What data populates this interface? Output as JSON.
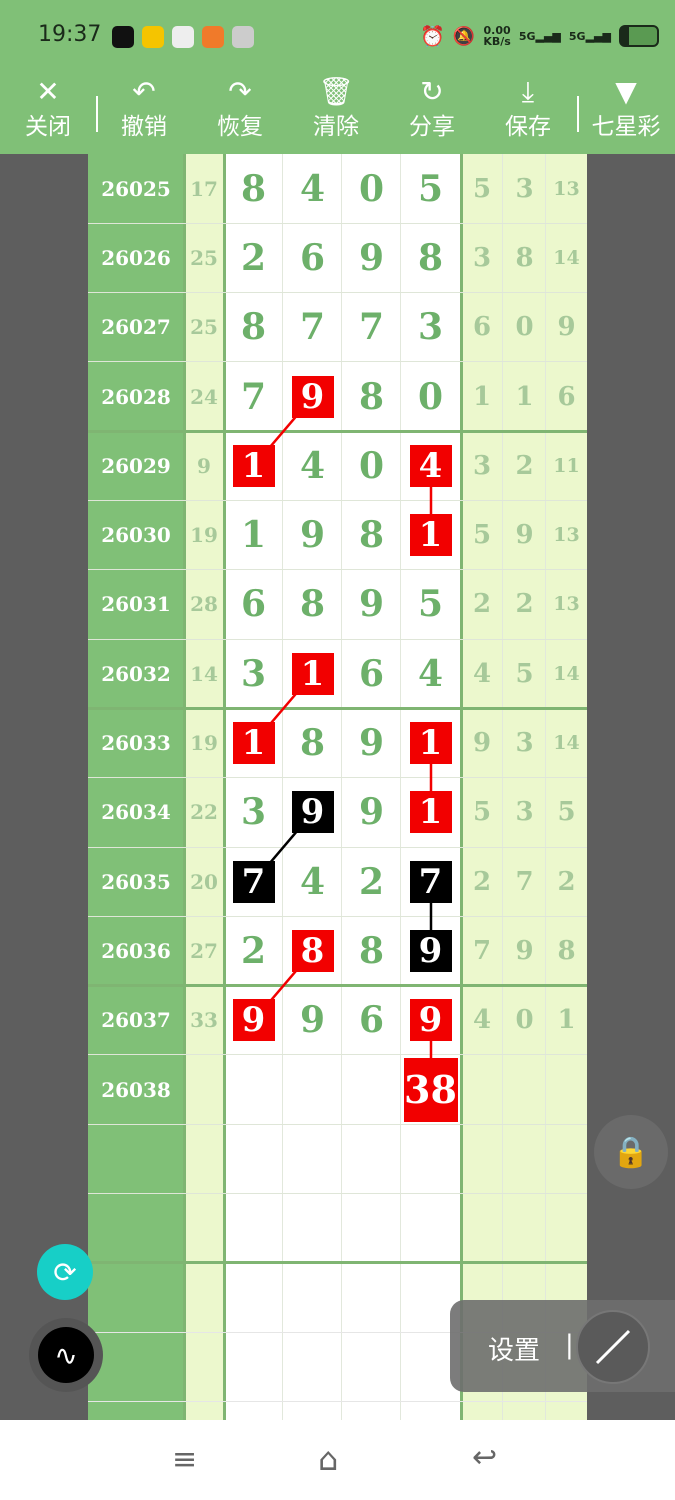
{
  "status": {
    "time": "19:37",
    "net_speed": "0.00",
    "net_unit": "KB/s",
    "sim1": "5G",
    "sim2": "5G",
    "battery_level": 0.25
  },
  "toolbar": [
    {
      "icon": "close-icon",
      "glyph": "✕",
      "label": "关闭"
    },
    {
      "icon": "undo-icon",
      "glyph": "↶",
      "label": "撤销"
    },
    {
      "icon": "redo-icon",
      "glyph": "↷",
      "label": "恢复"
    },
    {
      "icon": "trash-icon",
      "glyph": "🗑",
      "label": "清除"
    },
    {
      "icon": "share-icon",
      "glyph": "↻",
      "label": "分享"
    },
    {
      "icon": "download-icon",
      "glyph": "⤓",
      "label": "保存"
    },
    {
      "icon": "dropdown-triangle-icon",
      "glyph": "▼",
      "label": "七星彩"
    }
  ],
  "colors": {
    "green": "#80c077",
    "digit": "#6db06a",
    "light": "#ecf8cd",
    "red": "#f20000",
    "black": "#000000"
  },
  "rows": [
    {
      "id": "26025",
      "sum": "17",
      "d": [
        "8",
        "4",
        "0",
        "5"
      ],
      "r": [
        "5",
        "3",
        "13"
      ]
    },
    {
      "id": "26026",
      "sum": "25",
      "d": [
        "2",
        "6",
        "9",
        "8"
      ],
      "r": [
        "3",
        "8",
        "14"
      ]
    },
    {
      "id": "26027",
      "sum": "25",
      "d": [
        "8",
        "7",
        "7",
        "3"
      ],
      "r": [
        "6",
        "0",
        "9"
      ]
    },
    {
      "id": "26028",
      "sum": "24",
      "d": [
        "7",
        "9",
        "8",
        "0"
      ],
      "r": [
        "1",
        "1",
        "6"
      ]
    },
    {
      "id": "26029",
      "sum": "9",
      "d": [
        "1",
        "4",
        "0",
        "4"
      ],
      "r": [
        "3",
        "2",
        "11"
      ]
    },
    {
      "id": "26030",
      "sum": "19",
      "d": [
        "1",
        "9",
        "8",
        "1"
      ],
      "r": [
        "5",
        "9",
        "13"
      ]
    },
    {
      "id": "26031",
      "sum": "28",
      "d": [
        "6",
        "8",
        "9",
        "5"
      ],
      "r": [
        "2",
        "2",
        "13"
      ]
    },
    {
      "id": "26032",
      "sum": "14",
      "d": [
        "3",
        "1",
        "6",
        "4"
      ],
      "r": [
        "4",
        "5",
        "14"
      ]
    },
    {
      "id": "26033",
      "sum": "19",
      "d": [
        "1",
        "8",
        "9",
        "1"
      ],
      "r": [
        "9",
        "3",
        "14"
      ]
    },
    {
      "id": "26034",
      "sum": "22",
      "d": [
        "3",
        "9",
        "9",
        "1"
      ],
      "r": [
        "5",
        "3",
        "5"
      ]
    },
    {
      "id": "26035",
      "sum": "20",
      "d": [
        "7",
        "4",
        "2",
        "7"
      ],
      "r": [
        "2",
        "7",
        "2"
      ]
    },
    {
      "id": "26036",
      "sum": "27",
      "d": [
        "2",
        "8",
        "8",
        "9"
      ],
      "r": [
        "7",
        "9",
        "8"
      ]
    },
    {
      "id": "26037",
      "sum": "33",
      "d": [
        "9",
        "9",
        "6",
        "9"
      ],
      "r": [
        "4",
        "0",
        "1"
      ]
    },
    {
      "id": "26038",
      "sum": "",
      "d": [
        "",
        "",
        "",
        "38"
      ],
      "r": [
        "",
        "",
        ""
      ]
    }
  ],
  "marks": [
    {
      "row": 3,
      "col": 1,
      "color": "red"
    },
    {
      "row": 4,
      "col": 0,
      "color": "red"
    },
    {
      "row": 4,
      "col": 3,
      "color": "red"
    },
    {
      "row": 5,
      "col": 3,
      "color": "red"
    },
    {
      "row": 7,
      "col": 1,
      "color": "red"
    },
    {
      "row": 8,
      "col": 0,
      "color": "red"
    },
    {
      "row": 8,
      "col": 3,
      "color": "red"
    },
    {
      "row": 9,
      "col": 1,
      "color": "black"
    },
    {
      "row": 9,
      "col": 3,
      "color": "red"
    },
    {
      "row": 10,
      "col": 0,
      "color": "black"
    },
    {
      "row": 10,
      "col": 3,
      "color": "black"
    },
    {
      "row": 11,
      "col": 1,
      "color": "red"
    },
    {
      "row": 11,
      "col": 3,
      "color": "black"
    },
    {
      "row": 12,
      "col": 0,
      "color": "red"
    },
    {
      "row": 12,
      "col": 3,
      "color": "red"
    },
    {
      "row": 13,
      "col": 3,
      "color": "red"
    }
  ],
  "links": [
    {
      "from": [
        3,
        1
      ],
      "to": [
        4,
        0
      ],
      "color": "red"
    },
    {
      "from": [
        4,
        3
      ],
      "to": [
        5,
        3
      ],
      "color": "red"
    },
    {
      "from": [
        7,
        1
      ],
      "to": [
        8,
        0
      ],
      "color": "red"
    },
    {
      "from": [
        8,
        3
      ],
      "to": [
        9,
        3
      ],
      "color": "red"
    },
    {
      "from": [
        9,
        1
      ],
      "to": [
        10,
        0
      ],
      "color": "black"
    },
    {
      "from": [
        10,
        3
      ],
      "to": [
        11,
        3
      ],
      "color": "black"
    },
    {
      "from": [
        11,
        1
      ],
      "to": [
        12,
        0
      ],
      "color": "red"
    },
    {
      "from": [
        12,
        3
      ],
      "to": [
        13,
        3
      ],
      "color": "red"
    }
  ],
  "settings": {
    "label": "设置",
    "divider": "|"
  }
}
